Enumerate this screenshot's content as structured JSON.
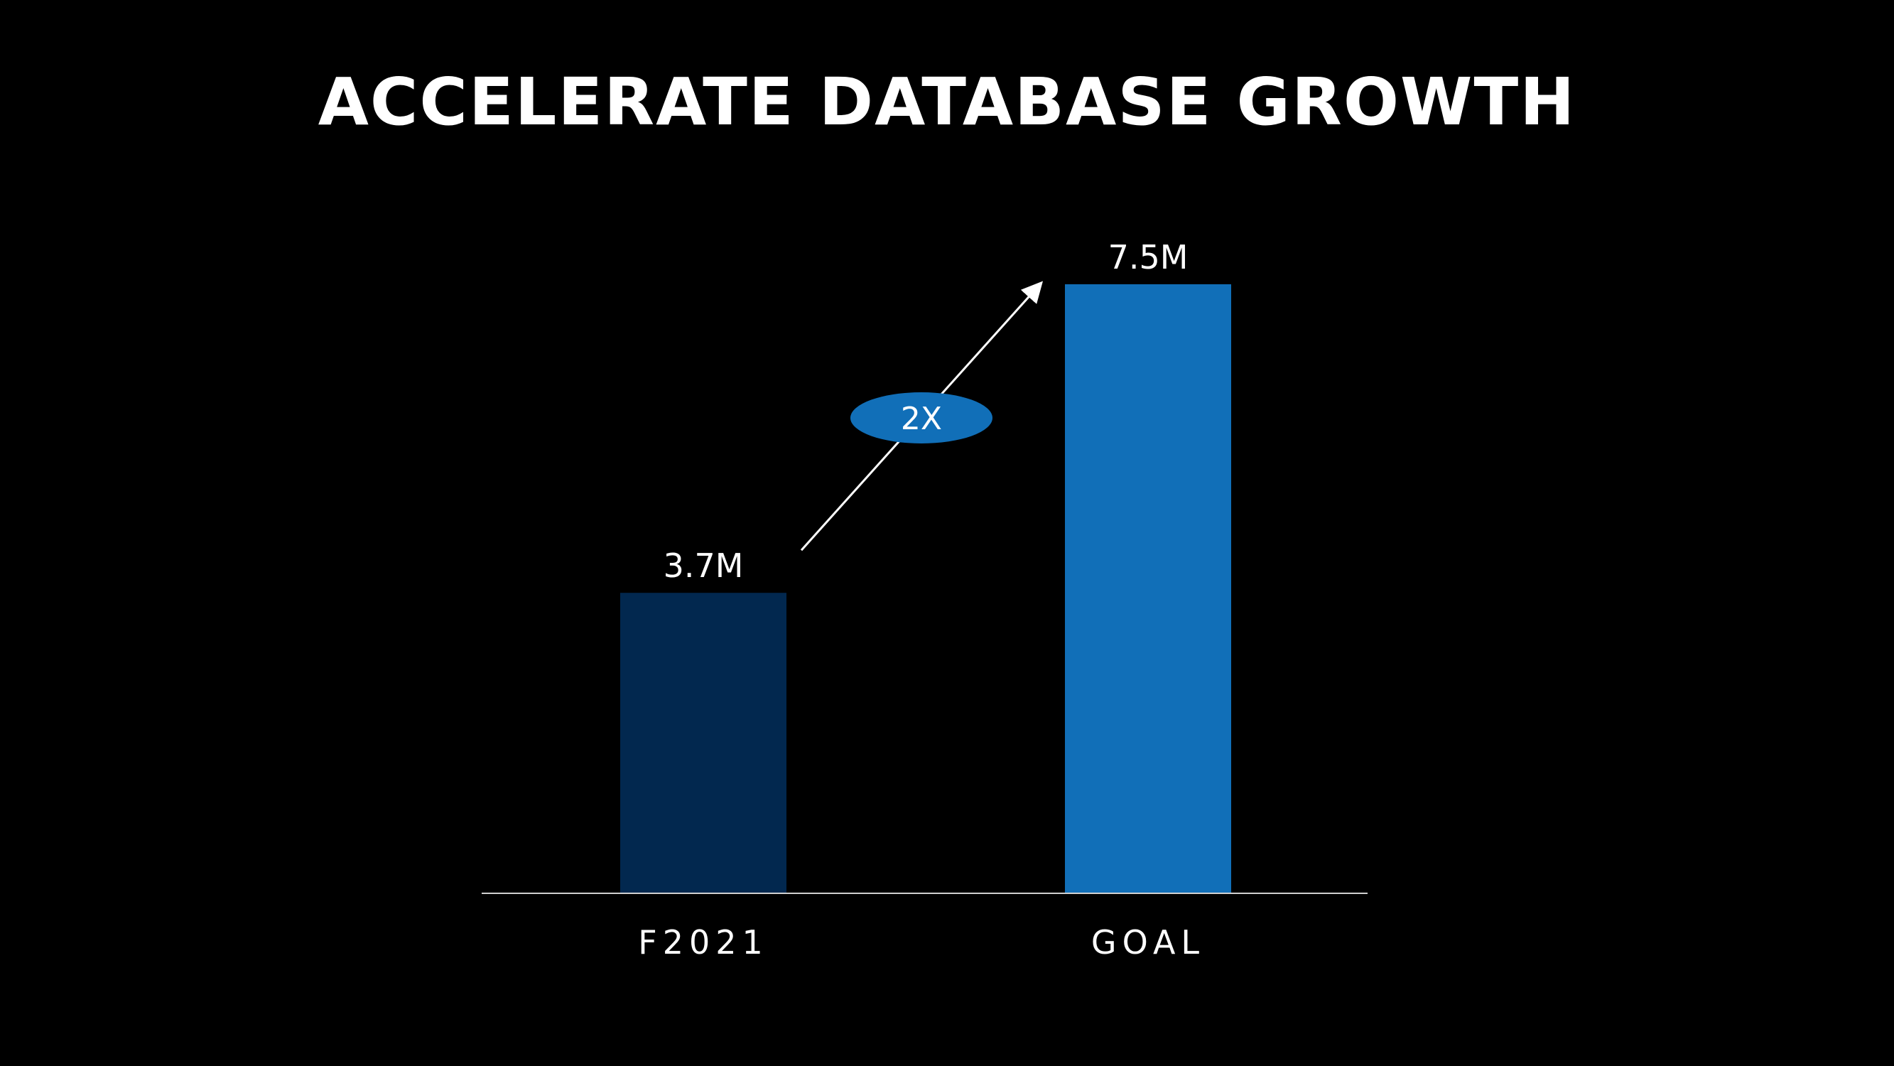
{
  "slide": {
    "title": "ACCELERATE DATABASE GROWTH"
  },
  "chart_data": {
    "type": "bar",
    "categories": [
      "F2021",
      "GOAL"
    ],
    "values": [
      3.7,
      7.5
    ],
    "data_labels": [
      "3.7M",
      "7.5M"
    ],
    "unit": "M",
    "ylim": [
      0,
      7.5
    ],
    "grid": false,
    "legend": "none",
    "bar_colors": [
      "#02284f",
      "#116fb8"
    ],
    "axis_color": "#d0d0d0",
    "annotation": {
      "text": "2X",
      "from_category": "F2021",
      "to_category": "GOAL",
      "badge_color": "#116fb8",
      "arrow_color": "#ffffff"
    }
  }
}
